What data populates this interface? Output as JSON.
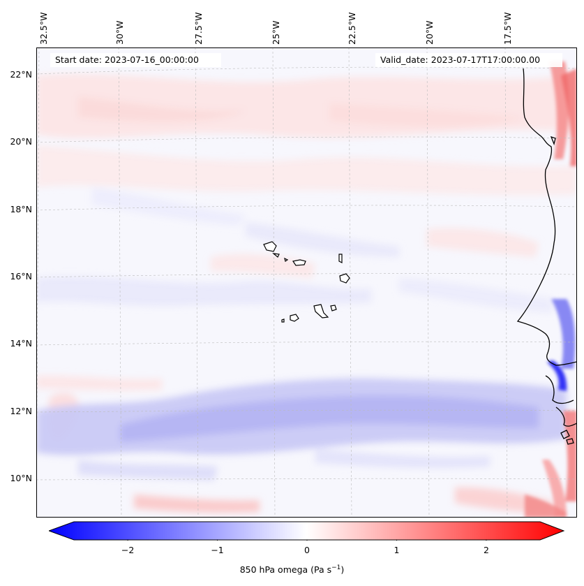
{
  "map": {
    "start_label": "Start date: 2023-07-16_00:00:00",
    "valid_label": "Valid_date: 2023-07-17T17:00:00.00",
    "lon_labels": [
      "32.5°W",
      "30°W",
      "27.5°W",
      "25°W",
      "22.5°W",
      "20°W",
      "17.5°W"
    ],
    "lat_labels": [
      "22°N",
      "20°N",
      "18°N",
      "16°N",
      "14°N",
      "12°N",
      "10°N"
    ],
    "field": "850 hPa omega",
    "region": "Cabo Verde / West African coast"
  },
  "colorbar": {
    "title": "850 hPa omega (Pa s",
    "title_sup": "−1",
    "title_end": ")",
    "ticks": [
      "−2",
      "−1",
      "0",
      "1",
      "2"
    ],
    "tick_values": [
      -2,
      -1,
      0,
      1,
      2
    ],
    "range": [
      -2.6,
      2.6
    ],
    "colors": {
      "neg": "#0000ff",
      "mid": "#ffffff",
      "pos": "#ff0000"
    }
  }
}
